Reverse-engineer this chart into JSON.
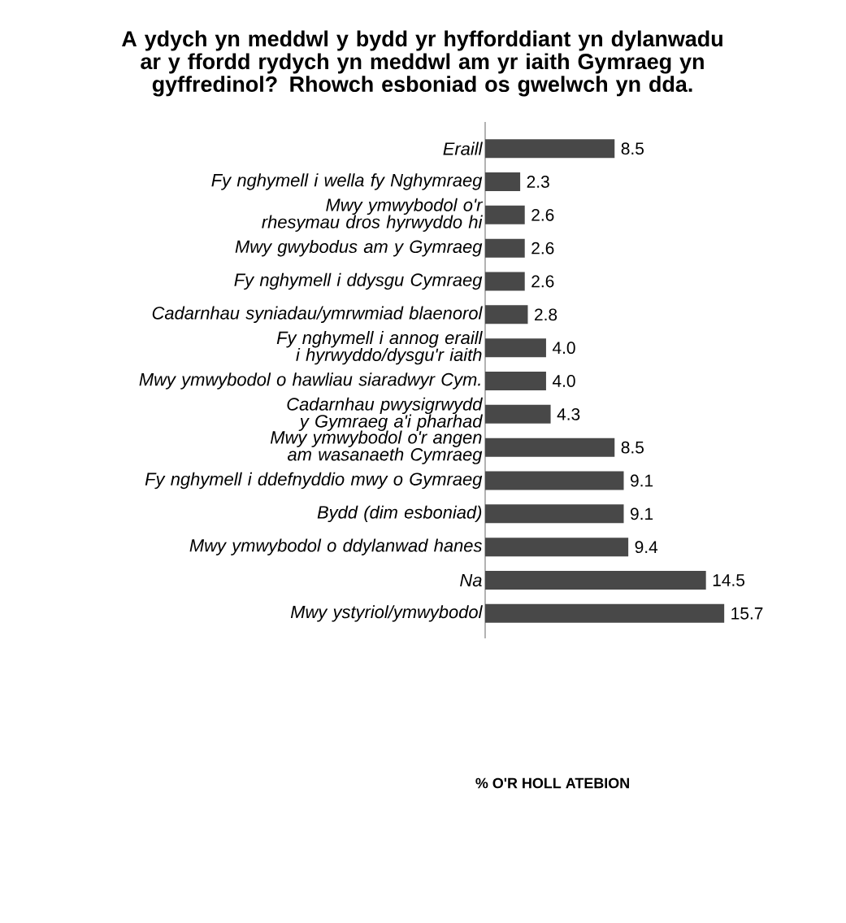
{
  "chart_data": {
    "type": "bar",
    "orientation": "horizontal",
    "title": "A ydych yn meddwl y bydd yr hyfforddiant yn dylanwadu ar y ffordd rydych yn meddwl am yr iaith Gymraeg yn gyffredinol? Rhowch esboniad os gwelwch yn dda.",
    "annotations": [
      "% O'R HOLL ATEBION"
    ],
    "categories": [
      "Eraill",
      "Fy nghymell i wella fy Nghymraeg",
      "Mwy ymwybodol o'r rhesymau dros hyrwyddo hi",
      "Mwy gwybodus am y Gymraeg",
      "Fy nghymell i ddysgu Cymraeg",
      "Cadarnhau syniadau/ymrwmiad blaenorol",
      "Fy nghymell i annog eraill i hyrwyddo/dysgu'r iaith",
      "Mwy ymwybodol o hawliau siaradwyr Cym.",
      "Cadarnhau pwysigrwydd y Gymraeg a'i pharhad",
      "Mwy ymwybodol o'r angen am wasanaeth Cymraeg",
      "Fy nghymell i ddefnyddio mwy o Gymraeg",
      "Bydd (dim esboniad)",
      "Mwy ymwybodol o ddylanwad hanes",
      "Na",
      "Mwy ystyriol/ymwybodol"
    ],
    "values": [
      8.5,
      2.3,
      2.6,
      2.6,
      2.6,
      2.8,
      4.0,
      4.0,
      4.3,
      8.5,
      9.1,
      9.1,
      9.4,
      14.5,
      15.7
    ],
    "value_labels": [
      "8.5",
      "2.3",
      "2.6",
      "2.6",
      "2.6",
      "2.8",
      "4.0",
      "4.0",
      "4.3",
      "8.5",
      "9.1",
      "9.1",
      "9.4",
      "14.5",
      "15.7"
    ],
    "color": "#484848"
  }
}
